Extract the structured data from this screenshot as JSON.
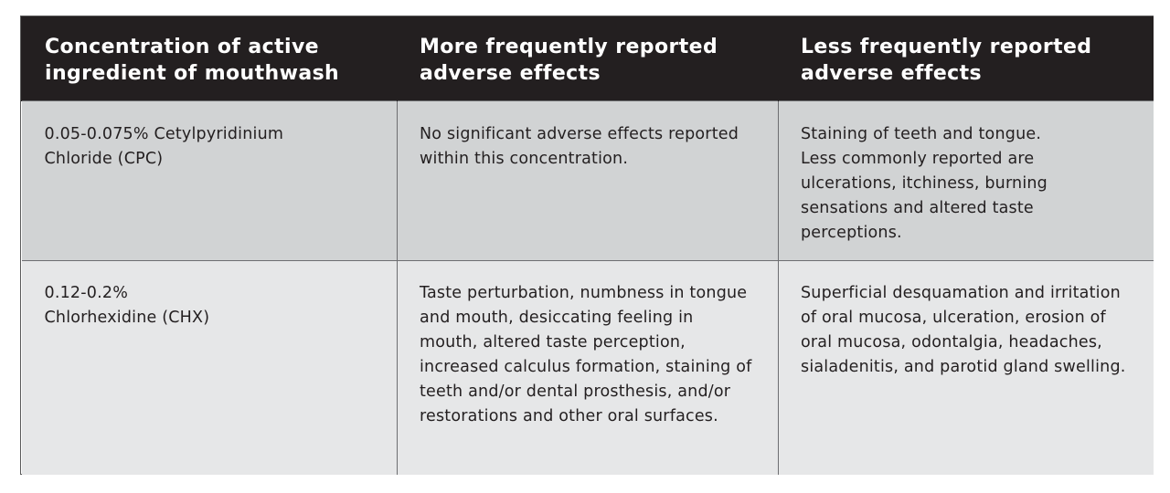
{
  "table": {
    "headers": [
      "Concentration of active ingredient of mouthwash",
      "More frequently reported adverse effects",
      "Less frequently reported adverse effects"
    ],
    "rows": [
      [
        "0.05-0.075% Cetylpyridinium Chloride (CPC)",
        "No significant adverse effects reported within this concentration.",
        "Staining of teeth and tongue. Less commonly reported are ulcerations, itchiness, burning sensations and altered taste perceptions."
      ],
      [
        "0.12-0.2% Chlorhexidine (CHX)",
        "Taste perturbation, numbness in tongue and mouth, desiccating feeling in mouth, altered taste perception, increased calculus formation, staining of teeth and/or dental prosthesis, and/or restorations and other oral surfaces.",
        "Superficial desquamation and irritation of oral mucosa, ulceration, erosion of oral mucosa, odontalgia, headaches, sialadenitis, and parotid gland swelling."
      ]
    ]
  },
  "colors": {
    "header_bg": "#231f20",
    "row1_bg": "#d1d3d4",
    "row2_bg": "#e6e7e8",
    "text": "#231f20"
  }
}
